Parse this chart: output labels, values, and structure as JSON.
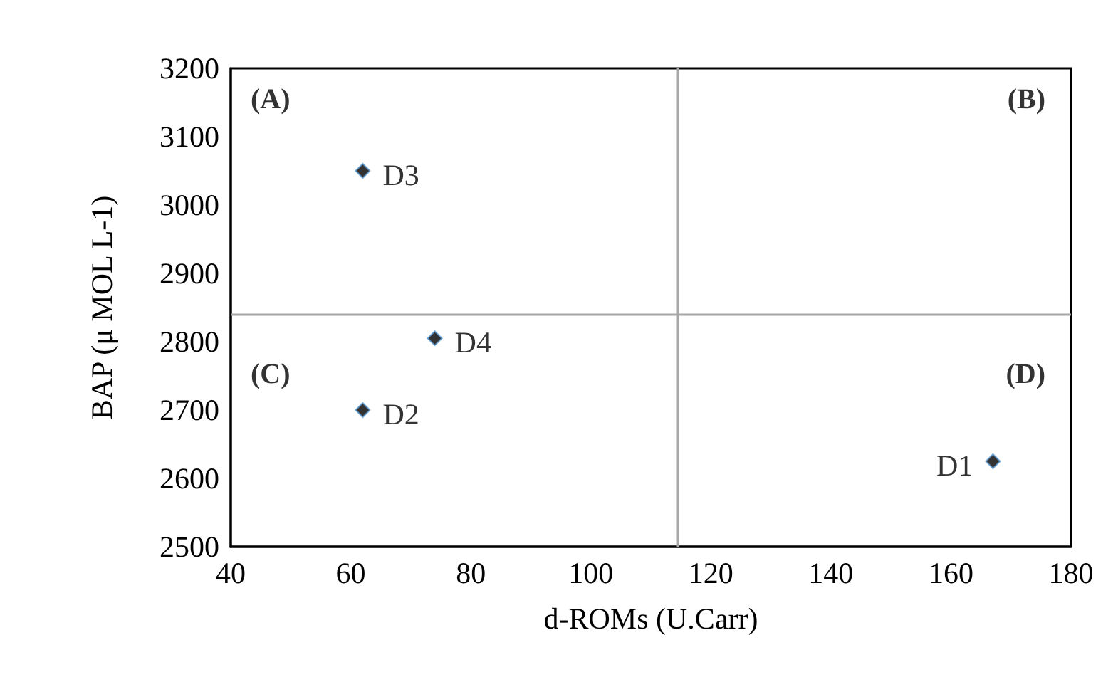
{
  "chart_data": {
    "type": "scatter",
    "xlabel": "d-ROMs (U.Carr)",
    "ylabel": "BAP (μ MOL L-1)",
    "series": [
      {
        "color": "#000000",
        "x": [
          167,
          62,
          62,
          74
        ],
        "values": [
          2625,
          2700,
          3050,
          2805
        ]
      }
    ],
    "marker": "diamond",
    "xlim": [
      40,
      180
    ],
    "xticks": [
      40,
      60,
      80,
      100,
      120,
      140,
      160,
      180
    ],
    "ylim": [
      2500,
      3200
    ],
    "yticks": [
      2500,
      2600,
      2700,
      2800,
      2900,
      3000,
      3100,
      3200
    ],
    "ref_lines": [
      {
        "axis": "x",
        "value": 114.5,
        "color": "#a6a6a6"
      },
      {
        "axis": "y",
        "value": 2840,
        "color": "#a6a6a6"
      }
    ],
    "annotations": [
      "(A)",
      "(B)",
      "(C)",
      "(D)",
      {
        "text": "D1",
        "x": 167,
        "y": 2625
      },
      {
        "text": "D2",
        "x": 62,
        "y": 2700
      },
      {
        "text": "D3",
        "x": 62,
        "y": 3050
      },
      {
        "text": "D4",
        "x": 74,
        "y": 2805
      }
    ]
  }
}
